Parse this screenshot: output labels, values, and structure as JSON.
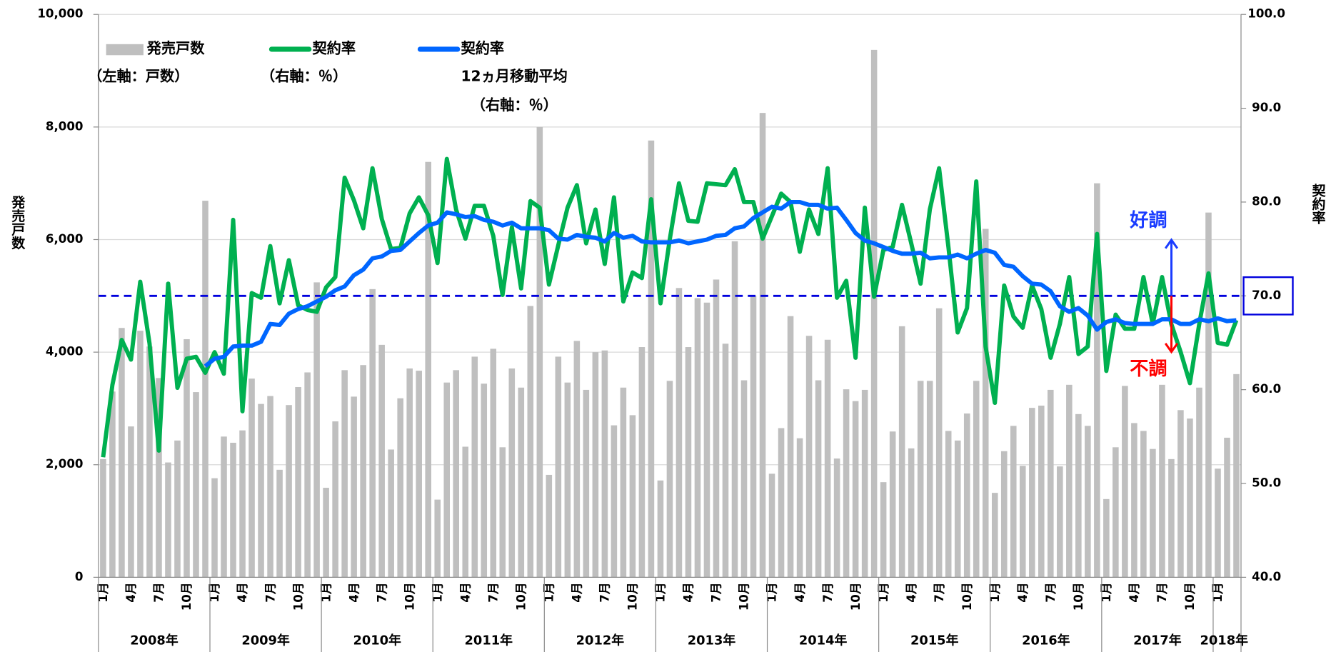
{
  "chart_data": {
    "type": "combo",
    "y_label": "発売戸数",
    "y2_label": "契約率",
    "ylim": [
      0,
      10000
    ],
    "yticks": [
      0,
      {
        "value": 2000,
        "label": "2,000"
      },
      {
        "value": 4000,
        "label": "4,000"
      },
      {
        "value": 6000,
        "label": "6,000"
      },
      {
        "value": 8000,
        "label": "8,000"
      },
      {
        "value": 10000,
        "label": "10,000"
      }
    ],
    "y2lim": [
      40,
      100
    ],
    "y2ticks": [
      {
        "value": 40,
        "label": "40.0"
      },
      {
        "value": 50,
        "label": "50.0"
      },
      {
        "value": 60,
        "label": "60.0"
      },
      {
        "value": 70,
        "label": "70.0"
      },
      {
        "value": 80,
        "label": "80.0"
      },
      {
        "value": 90,
        "label": "90.0"
      },
      {
        "value": 100,
        "label": "100.0"
      }
    ],
    "grid": true,
    "categories": [
      "1月",
      null,
      null,
      "4月",
      null,
      null,
      "7月",
      null,
      null,
      "10月",
      null,
      null,
      "1月",
      null,
      null,
      "4月",
      null,
      null,
      "7月",
      null,
      null,
      "10月",
      null,
      null,
      "1月",
      null,
      null,
      "4月",
      null,
      null,
      "7月",
      null,
      null,
      "10月",
      null,
      null,
      "1月",
      null,
      null,
      "4月",
      null,
      null,
      "7月",
      null,
      null,
      "10月",
      null,
      null,
      "1月",
      null,
      null,
      "4月",
      null,
      null,
      "7月",
      null,
      null,
      "10月",
      null,
      null,
      "1月",
      null,
      null,
      "4月",
      null,
      null,
      "7月",
      null,
      null,
      "10月",
      null,
      null,
      "1月",
      null,
      null,
      "4月",
      null,
      null,
      "7月",
      null,
      null,
      "10月",
      null,
      null,
      "1月",
      null,
      null,
      "4月",
      null,
      null,
      "7月",
      null,
      null,
      "10月",
      null,
      null,
      "1月",
      null,
      null,
      "4月",
      null,
      null,
      "7月",
      null,
      null,
      "10月",
      null,
      null,
      "1月",
      null,
      null,
      "4月",
      null,
      null,
      "7月",
      null,
      null,
      "10月",
      null,
      null,
      "1月",
      null,
      null
    ],
    "years": [
      "2008年",
      "2009年",
      "2010年",
      "2011年",
      "2012年",
      "2013年",
      "2014年",
      "2015年",
      "2016年",
      "2017年",
      "2018年"
    ],
    "series": [
      {
        "name": "発売戸数",
        "legend_lines": [
          "（左軸：戸数）"
        ],
        "kind": "bar",
        "color": "#bfbfbf",
        "values": [
          2100,
          3300,
          4430,
          2680,
          4380,
          4100,
          3540,
          2040,
          2430,
          4230,
          3290,
          6690,
          1760,
          2500,
          2390,
          2610,
          3530,
          3080,
          3220,
          1910,
          3060,
          3380,
          3640,
          5240,
          1590,
          2770,
          3680,
          3210,
          3770,
          5120,
          4130,
          2270,
          3180,
          3710,
          3670,
          7380,
          1380,
          3460,
          3680,
          2320,
          3920,
          3440,
          4060,
          2310,
          3710,
          3370,
          4820,
          8000,
          1820,
          3920,
          3460,
          4200,
          3330,
          4000,
          4030,
          2700,
          3370,
          2880,
          4090,
          7760,
          1720,
          3490,
          5140,
          4090,
          4960,
          4880,
          5290,
          4150,
          5970,
          3500,
          5000,
          8250,
          1840,
          2650,
          4640,
          2470,
          4290,
          3500,
          4220,
          2110,
          3340,
          3130,
          3330,
          9370,
          1690,
          2590,
          4460,
          2290,
          3490,
          3490,
          4780,
          2600,
          2430,
          2910,
          3490,
          6190,
          1500,
          2240,
          2690,
          1980,
          3010,
          3050,
          3330,
          1970,
          3420,
          2900,
          2690,
          7000,
          1390,
          2310,
          3400,
          2740,
          2600,
          2280,
          3420,
          2100,
          2970,
          2820,
          3370,
          6480,
          1930,
          2480,
          3610
        ]
      },
      {
        "name": "契約率",
        "legend_lines": [
          "（右軸：％）"
        ],
        "kind": "line",
        "axis": "y2",
        "color": "#00b050",
        "values": [
          52.8,
          60.5,
          65.3,
          63.2,
          71.5,
          64.9,
          53.5,
          71.3,
          60.2,
          63.3,
          63.5,
          61.8,
          64,
          61.7,
          78.1,
          57.7,
          70.3,
          69.8,
          75.3,
          69.2,
          73.8,
          69,
          68.5,
          68.3,
          70.9,
          72,
          82.6,
          80.2,
          77.2,
          83.6,
          78.2,
          75,
          75.1,
          78.8,
          80.5,
          78.6,
          73.5,
          84.6,
          79.2,
          76.1,
          79.6,
          79.6,
          76.4,
          70.1,
          77.3,
          70.8,
          80.1,
          79.4,
          71.2,
          75.4,
          79.4,
          81.8,
          75.6,
          79.2,
          73.4,
          80.5,
          69.4,
          72.5,
          71.9,
          80.3,
          69.2,
          76,
          82,
          78,
          77.9,
          82,
          81.9,
          81.8,
          83.5,
          80,
          80,
          76.1,
          78.5,
          80.9,
          80,
          74.7,
          79.2,
          76.6,
          83.6,
          69.8,
          71.6,
          63.4,
          79.4,
          69.9,
          74.9,
          75.2,
          79.7,
          75.6,
          71.3,
          79.2,
          83.6,
          75.2,
          66.1,
          68.7,
          82.2,
          64.6,
          58.6,
          71.1,
          67.8,
          66.6,
          71.1,
          68.6,
          63.4,
          67,
          72,
          63.8,
          64.6,
          76.6,
          62,
          68,
          66.5,
          66.5,
          72,
          67,
          72,
          67,
          64,
          60.7,
          67,
          72.4,
          65,
          64.8,
          67.4
        ]
      },
      {
        "name": "契約率",
        "legend_lines": [
          "12ヵ月移動平均",
          "（右軸：％）"
        ],
        "kind": "line",
        "axis": "y2",
        "color": "#0066ff",
        "values": [
          null,
          null,
          null,
          null,
          null,
          null,
          null,
          null,
          null,
          null,
          null,
          62.5,
          63.3,
          63.5,
          64.6,
          64.7,
          64.7,
          65.1,
          67,
          66.9,
          68.1,
          68.6,
          68.9,
          69.4,
          69.9,
          70.6,
          71,
          72.2,
          72.8,
          74,
          74.2,
          74.8,
          74.9,
          75.8,
          76.7,
          77.5,
          77.8,
          78.9,
          78.7,
          78.4,
          78.5,
          78.1,
          77.9,
          77.5,
          77.8,
          77.2,
          77.2,
          77.2,
          77,
          76.1,
          76,
          76.5,
          76.3,
          76.2,
          75.8,
          76.7,
          76.2,
          76.4,
          75.8,
          75.7,
          75.7,
          75.7,
          75.9,
          75.6,
          75.8,
          76,
          76.4,
          76.5,
          77.2,
          77.4,
          78.3,
          78.9,
          79.5,
          79.3,
          80,
          80,
          79.7,
          79.7,
          79.3,
          79.4,
          78.1,
          76.7,
          75.9,
          75.6,
          75.2,
          74.8,
          74.5,
          74.5,
          74.6,
          74,
          74.1,
          74.1,
          74.4,
          74,
          74.5,
          74.9,
          74.6,
          73.3,
          73.1,
          72.1,
          71.3,
          71.2,
          70.5,
          68.9,
          68.3,
          68.7,
          67.9,
          66.4,
          67.2,
          67.5,
          67.1,
          67,
          67,
          67,
          67.5,
          67.5,
          67,
          67,
          67.5,
          67.3,
          67.6,
          67.3,
          67.4
        ]
      }
    ],
    "reference_line": {
      "value": 70,
      "axis": "y2",
      "color": "#0000dd"
    },
    "annotations": [
      {
        "text": "好調",
        "color": "#1a3cff",
        "direction": "up"
      },
      {
        "text": "不調",
        "color": "#ff0000",
        "direction": "down"
      }
    ]
  }
}
